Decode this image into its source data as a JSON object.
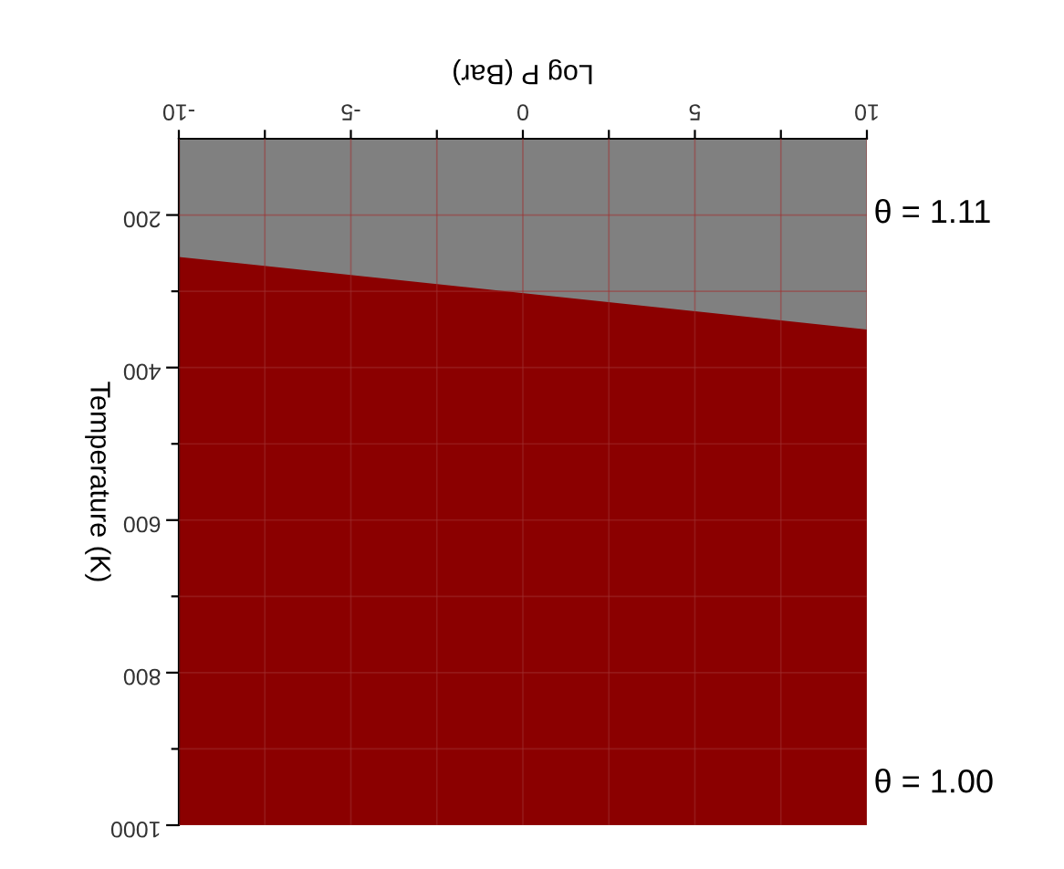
{
  "chart_data": {
    "type": "area",
    "xlabel": "Log P (Bar)",
    "ylabel": "Temperature (K)",
    "x": [
      -10,
      10
    ],
    "series": [
      {
        "color": "#808080",
        "values": [
          255,
          350
        ]
      }
    ],
    "bands": [
      {
        "axis": "y",
        "from": 100,
        "to": 1000,
        "color": "#8b0000"
      }
    ],
    "xlim": [
      -10,
      10
    ],
    "ylim": [
      1000,
      100
    ],
    "xticks": [
      -10,
      {
        "value": -7.5,
        "label": null
      },
      -5,
      {
        "value": -2.5,
        "label": null
      },
      0,
      {
        "value": 2.5,
        "label": null
      },
      5,
      {
        "value": 7.5,
        "label": null
      },
      10
    ],
    "yticks": [
      200,
      {
        "value": 300,
        "label": null
      },
      400,
      {
        "value": 500,
        "label": null
      },
      600,
      {
        "value": 700,
        "label": null
      },
      800,
      {
        "value": 900,
        "label": null
      },
      1000
    ],
    "grid": true,
    "annotations": [
      "θ = 1.11",
      "θ = 1.00"
    ]
  }
}
